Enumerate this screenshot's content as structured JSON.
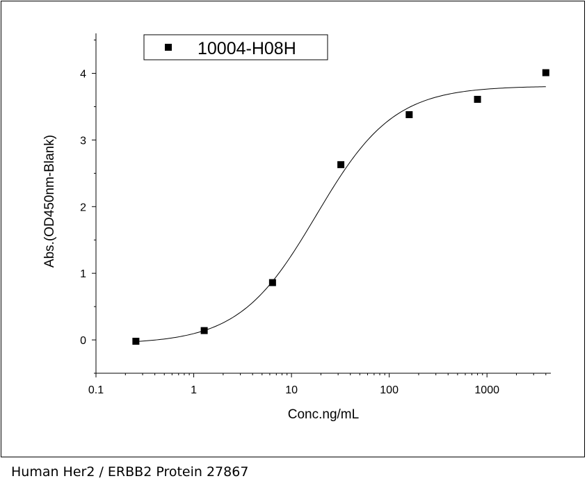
{
  "caption": "Human Her2 / ERBB2 Protein 27867",
  "chart_data": {
    "type": "scatter",
    "x_scale": "log",
    "xlabel": "Conc.ng/mL",
    "ylabel": "Abs.(OD450nm-Blank)",
    "xlim": [
      0.1,
      4500
    ],
    "ylim": [
      -0.5,
      4.6
    ],
    "x_tick_labels": [
      "0.1",
      "1",
      "10",
      "100",
      "1000"
    ],
    "y_tick_labels": [
      "0",
      "1",
      "2",
      "3",
      "4"
    ],
    "legend_position": "top-left",
    "series": [
      {
        "name": "10004-H08H",
        "marker": "square",
        "color": "#000000",
        "x": [
          0.256,
          1.28,
          6.4,
          32,
          160,
          800,
          4000
        ],
        "y": [
          -0.02,
          0.14,
          0.86,
          2.63,
          3.38,
          3.61,
          4.01
        ]
      }
    ],
    "fit_curve": {
      "model": "4PL",
      "bottom": -0.06,
      "top": 3.81,
      "ec50": 18,
      "hill": 1.1
    }
  }
}
